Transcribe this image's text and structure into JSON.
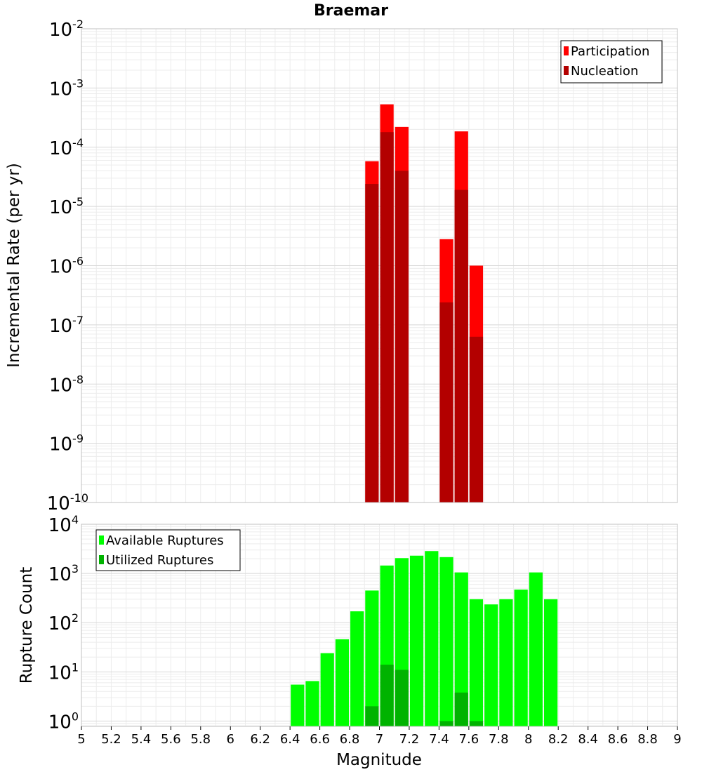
{
  "chart_data": [
    {
      "type": "bar",
      "title": "Braemar",
      "ylabel": "Incremental Rate (per yr)",
      "xlabel": "",
      "yscale": "log",
      "ylim": [
        1e-10,
        0.01
      ],
      "xlim": [
        5,
        9
      ],
      "bin_width": 0.1,
      "grid": true,
      "legend_position": "top-right",
      "y_tick_exponents": [
        "-2",
        "-3",
        "-4",
        "-5",
        "-6",
        "-7",
        "-8",
        "-9",
        "-10"
      ],
      "y_tick_base": "10",
      "x": [
        6.95,
        7.05,
        7.15,
        7.45,
        7.55,
        7.65
      ],
      "series": [
        {
          "name": "Participation",
          "color": "#ff0000",
          "values": [
            5.8e-05,
            0.00053,
            0.00022,
            2.8e-06,
            0.000185,
            1e-06
          ]
        },
        {
          "name": "Nucleation",
          "color": "#b30000",
          "values": [
            2.4e-05,
            0.00018,
            4e-05,
            2.4e-07,
            1.9e-05,
            6.3e-08
          ]
        }
      ]
    },
    {
      "type": "bar",
      "title": "",
      "ylabel": "Rupture Count",
      "xlabel": "Magnitude",
      "yscale": "log",
      "ylim": [
        0.78,
        10000
      ],
      "xlim": [
        5,
        9
      ],
      "bin_width": 0.1,
      "grid": true,
      "legend_position": "top-left",
      "y_tick_exponents": [
        "4",
        "3",
        "2",
        "1",
        "0"
      ],
      "y_tick_base": "10",
      "x_ticks": [
        "5",
        "5.2",
        "5.4",
        "5.6",
        "5.8",
        "6",
        "6.2",
        "6.4",
        "6.6",
        "6.8",
        "7",
        "7.2",
        "7.4",
        "7.6",
        "7.8",
        "8",
        "8.2",
        "8.4",
        "8.6",
        "8.8",
        "9"
      ],
      "series": [
        {
          "name": "Available Ruptures",
          "color": "#00ff00",
          "x": [
            6.45,
            6.55,
            6.65,
            6.75,
            6.85,
            6.95,
            7.05,
            7.15,
            7.25,
            7.35,
            7.45,
            7.55,
            7.65,
            7.75,
            7.85,
            7.95,
            8.05,
            8.15
          ],
          "values": [
            5.5,
            6.5,
            24,
            46,
            170,
            450,
            1450,
            2050,
            2300,
            2850,
            2150,
            1050,
            300,
            235,
            300,
            470,
            1050,
            300
          ]
        },
        {
          "name": "Utilized Ruptures",
          "color": "#00b300",
          "x": [
            6.95,
            7.05,
            7.15,
            7.45,
            7.55,
            7.65
          ],
          "values": [
            2,
            14,
            11,
            1,
            3.8,
            1
          ]
        }
      ]
    }
  ]
}
